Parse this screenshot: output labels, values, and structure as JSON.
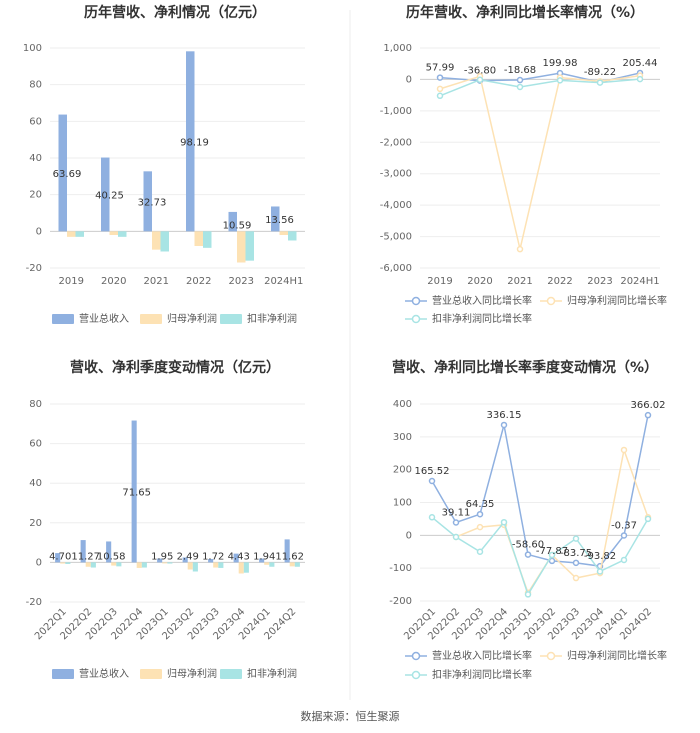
{
  "source": "数据来源：恒生聚源",
  "chart_data": [
    {
      "type": "bar",
      "title": "历年营收、净利情况（亿元）",
      "categories": [
        "2019",
        "2020",
        "2021",
        "2022",
        "2023",
        "2024H1"
      ],
      "ylim": [
        -20,
        100
      ],
      "yticks": [
        -20,
        0,
        20,
        40,
        60,
        80,
        100
      ],
      "series": [
        {
          "name": "营业总收入",
          "color": "#8fb0e0",
          "values": [
            63.69,
            40.25,
            32.73,
            98.19,
            10.59,
            13.56
          ]
        },
        {
          "name": "归母净利润",
          "color": "#fde2b4",
          "values": [
            -3,
            -2,
            -10,
            -8,
            -17,
            -2
          ]
        },
        {
          "name": "扣非净利润",
          "color": "#a8e4e4",
          "values": [
            -3,
            -3,
            -11,
            -9,
            -16,
            -5
          ]
        }
      ],
      "data_labels": [
        "63.69",
        "40.25",
        "32.73",
        "98.19",
        "10.59",
        "13.56"
      ]
    },
    {
      "type": "line",
      "title": "历年营收、净利同比增长率情况（%）",
      "categories": [
        "2019",
        "2020",
        "2021",
        "2022",
        "2023",
        "2024H1"
      ],
      "ylim": [
        -6000,
        1000
      ],
      "yticks": [
        -6000,
        -5000,
        -4000,
        -3000,
        -2000,
        -1000,
        0,
        1000
      ],
      "ytick_labels": [
        "-6,000",
        "-5,000",
        "-4,000",
        "-3,000",
        "-2,000",
        "-1,000",
        "0",
        "1,000"
      ],
      "series": [
        {
          "name": "营业总收入同比增长率",
          "color": "#8fb0e0",
          "values": [
            57.99,
            -36.8,
            -18.68,
            199.98,
            -89.22,
            205.44
          ]
        },
        {
          "name": "归母净利润同比增长率",
          "color": "#fde2b4",
          "values": [
            -300,
            100,
            -5400,
            60,
            -60,
            120
          ]
        },
        {
          "name": "扣非净利润同比增长率",
          "color": "#a8e4e4",
          "values": [
            -520,
            -10,
            -240,
            -30,
            -100,
            10
          ]
        }
      ],
      "data_labels": [
        "57.99",
        "-36.80",
        "-18.68",
        "199.98",
        "-89.22",
        "205.44"
      ]
    },
    {
      "type": "bar",
      "title": "营收、净利季度变动情况（亿元）",
      "categories": [
        "2022Q1",
        "2022Q2",
        "2022Q3",
        "2022Q4",
        "2023Q1",
        "2023Q2",
        "2023Q3",
        "2023Q4",
        "2024Q1",
        "2024Q2"
      ],
      "ylim": [
        -20,
        80
      ],
      "yticks": [
        -20,
        0,
        20,
        40,
        60,
        80
      ],
      "series": [
        {
          "name": "营业总收入",
          "color": "#8fb0e0",
          "values": [
            4.7,
            11.27,
            10.58,
            71.65,
            1.95,
            2.49,
            1.72,
            4.43,
            1.94,
            11.62
          ]
        },
        {
          "name": "归母净利润",
          "color": "#fde2b4",
          "values": [
            -0.6,
            -2.2,
            -1.6,
            -2.8,
            -0.5,
            -3.6,
            -2.6,
            -5.6,
            -1.2,
            -2.0
          ]
        },
        {
          "name": "扣非净利润",
          "color": "#a8e4e4",
          "values": [
            -0.8,
            -2.6,
            -2.0,
            -2.6,
            -0.6,
            -4.6,
            -2.8,
            -5.2,
            -2.2,
            -2.2
          ]
        }
      ],
      "data_labels": [
        "4.70",
        "11.27",
        "10.58",
        "71.65",
        "1.95",
        "2.49",
        "1.72",
        "4.43",
        "1.94",
        "11.62"
      ]
    },
    {
      "type": "line",
      "title": "营收、净利同比增长率季度变动情况（%）",
      "categories": [
        "2022Q1",
        "2022Q2",
        "2022Q3",
        "2022Q4",
        "2023Q1",
        "2023Q2",
        "2023Q3",
        "2023Q4",
        "2024Q1",
        "2024Q2"
      ],
      "ylim": [
        -200,
        400
      ],
      "yticks": [
        -200,
        -100,
        0,
        100,
        200,
        300,
        400
      ],
      "series": [
        {
          "name": "营业总收入同比增长率",
          "color": "#8fb0e0",
          "values": [
            165.52,
            39.11,
            64.35,
            336.15,
            -58.6,
            -77.87,
            -83.75,
            -93.82,
            -0.37,
            366.02
          ]
        },
        {
          "name": "归母净利润同比增长率",
          "color": "#fde2b4",
          "values": [
            null,
            -5,
            25,
            32,
            -175,
            -60,
            -130,
            -115,
            260,
            55
          ]
        },
        {
          "name": "扣非净利润同比增长率",
          "color": "#a8e4e4",
          "values": [
            55,
            -5,
            -50,
            40,
            -180,
            -60,
            -10,
            -110,
            -75,
            50
          ]
        }
      ],
      "data_labels": [
        "165.52",
        "39.11",
        "64.35",
        "336.15",
        "-58.60",
        "-77.87",
        "-83.75",
        "-93.82",
        "-0.37",
        "366.02"
      ]
    }
  ]
}
